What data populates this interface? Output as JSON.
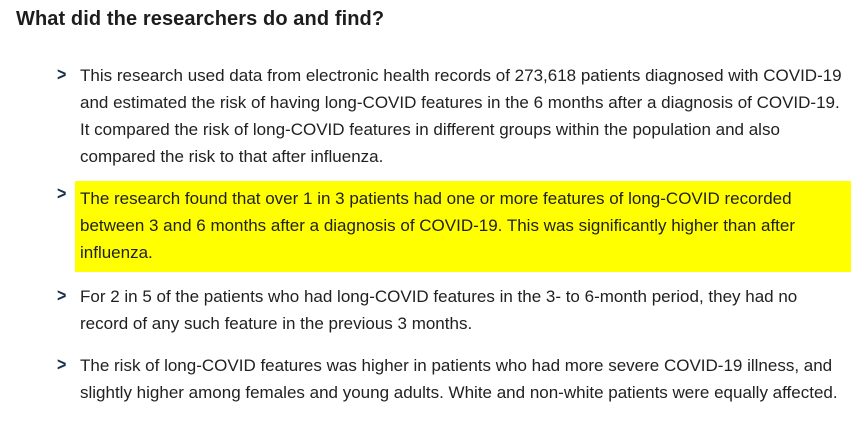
{
  "heading": {
    "text": "What did the researchers do and find?"
  },
  "list": {
    "marker_glyph": ">",
    "items": [
      {
        "text": "This research used data from electronic health records of 273,618 patients diagnosed with COVID-19 and estimated the risk of having long-COVID features in the 6 months after a diagnosis of COVID-19. It compared the risk of long-COVID features in different groups within the population and also compared the risk to that after influenza.",
        "highlighted": false
      },
      {
        "text": "The research found that over 1 in 3 patients had one or more features of long-COVID recorded between 3 and 6 months after a diagnosis of COVID-19. This was significantly higher than after influenza.",
        "highlighted": true
      },
      {
        "text": "For 2 in 5 of the patients who had long-COVID features in the 3- to 6-month period, they had no record of any such feature in the previous 3 months.",
        "highlighted": false
      },
      {
        "text": "The risk of long-COVID features was higher in patients who had more severe COVID-19 illness, and slightly higher among females and young adults. White and non-white patients were equally affected.",
        "highlighted": false
      }
    ]
  },
  "colors": {
    "background": "#ffffff",
    "heading_text": "#1d1d1d",
    "body_text": "#212121",
    "chevron": "#17314a",
    "highlight": "#ffff00"
  }
}
